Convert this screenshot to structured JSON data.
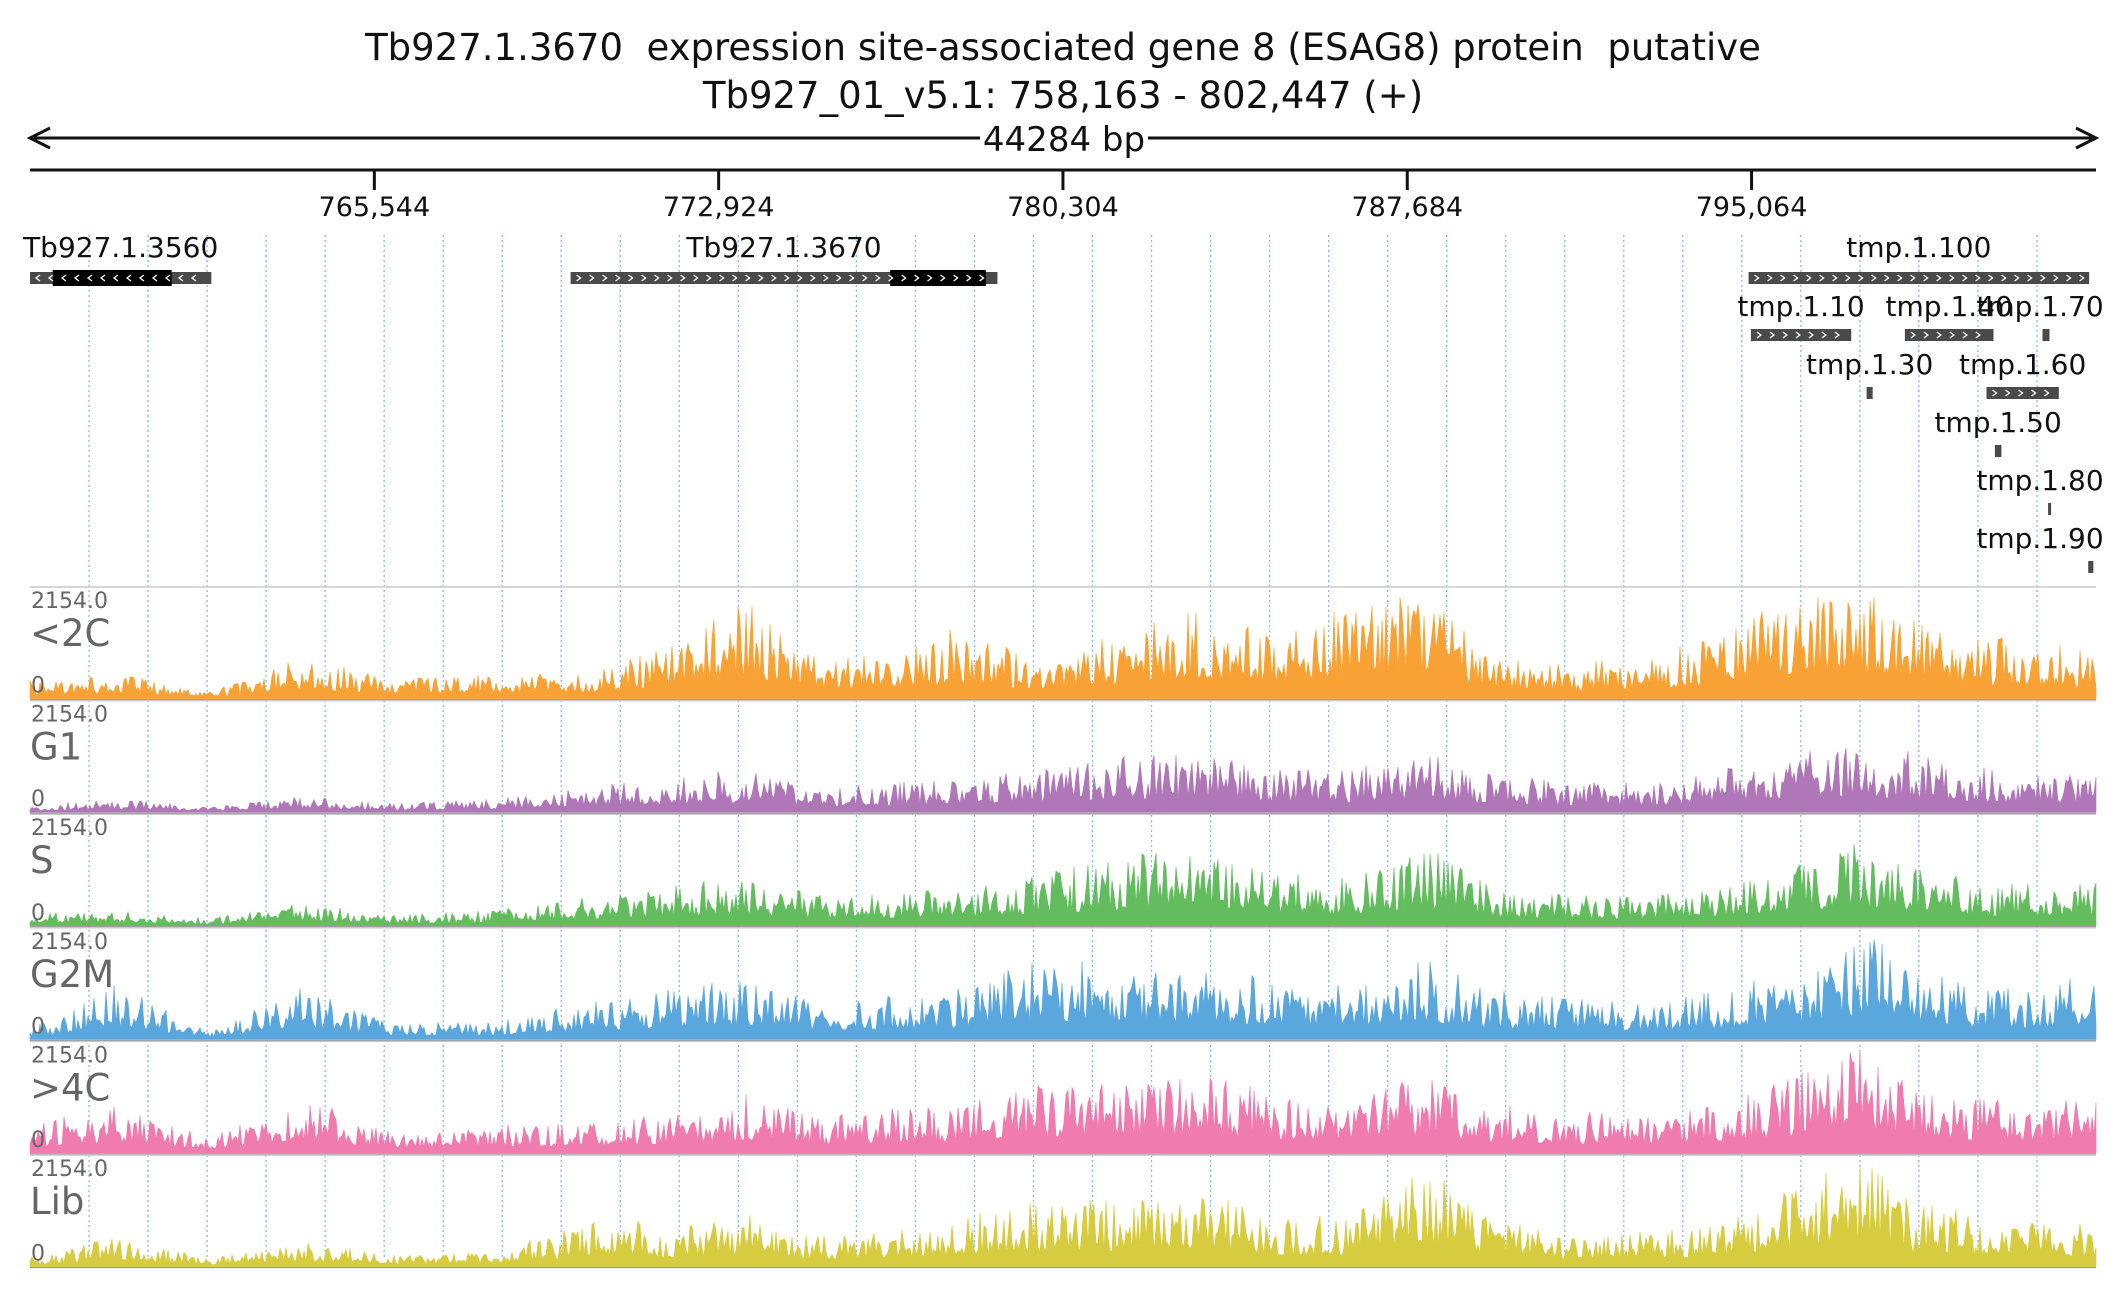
{
  "header": {
    "title": "Tb927.1.3670  expression site-associated gene 8 (ESAG8) protein  putative",
    "locus": "Tb927_01_v5.1: 758,163 - 802,447 (+)",
    "span_label": "44284 bp"
  },
  "region": {
    "chrom": "Tb927_01_v5.1",
    "start": 758163,
    "end": 802447,
    "strand": "+"
  },
  "ruler": {
    "ticks": [
      {
        "pos": 765544,
        "label": "765,544"
      },
      {
        "pos": 772924,
        "label": "772,924"
      },
      {
        "pos": 780304,
        "label": "780,304"
      },
      {
        "pos": 787684,
        "label": "787,684"
      },
      {
        "pos": 795064,
        "label": "795,064"
      }
    ]
  },
  "genes": [
    {
      "name": "Tb927.1.3560",
      "start": 758163,
      "end": 762050,
      "strand": "-",
      "cds_start": 758650,
      "cds_end": 761200,
      "row": 0
    },
    {
      "name": "Tb927.1.3670",
      "start": 769750,
      "end": 778900,
      "strand": "+",
      "cds_start": 776600,
      "cds_end": 778650,
      "row": 0
    },
    {
      "name": "tmp.1.100",
      "start": 795000,
      "end": 802300,
      "strand": "+",
      "row": 0
    },
    {
      "name": "tmp.1.10",
      "start": 795050,
      "end": 797200,
      "strand": "+",
      "row": 1
    },
    {
      "name": "tmp.1.40",
      "start": 798350,
      "end": 800250,
      "strand": "+",
      "row": 1
    },
    {
      "name": "tmp.1.70",
      "start": 801300,
      "end": 801450,
      "strand": "+",
      "row": 1
    },
    {
      "name": "tmp.1.30",
      "start": 797530,
      "end": 797660,
      "strand": "+",
      "row": 2
    },
    {
      "name": "tmp.1.60",
      "start": 800100,
      "end": 801650,
      "strand": "+",
      "row": 2
    },
    {
      "name": "tmp.1.50",
      "start": 800280,
      "end": 800420,
      "strand": "+",
      "row": 3
    },
    {
      "name": "tmp.1.80",
      "start": 801420,
      "end": 801480,
      "strand": "+",
      "row": 4
    },
    {
      "name": "tmp.1.90",
      "start": 802280,
      "end": 802390,
      "strand": "+",
      "row": 5
    }
  ],
  "tracks": [
    {
      "name": "<2C",
      "max_label": "2154.0",
      "min_label": "0",
      "color": "#F8A236"
    },
    {
      "name": "G1",
      "max_label": "2154.0",
      "min_label": "0",
      "color": "#B077B8"
    },
    {
      "name": "S",
      "max_label": "2154.0",
      "min_label": "0",
      "color": "#63BD5E"
    },
    {
      "name": "G2M",
      "max_label": "2154.0",
      "min_label": "0",
      "color": "#5AA7DE"
    },
    {
      "name": ">4C",
      "max_label": "2154.0",
      "min_label": "0",
      "color": "#F07BAE"
    },
    {
      "name": "Lib",
      "max_label": "2154.0",
      "min_label": "0",
      "color": "#D7CC3F"
    }
  ],
  "chart_data": {
    "type": "area",
    "xlabel": "",
    "ylabel": "",
    "x_range": [
      758163,
      802447
    ],
    "ylim": [
      0,
      2154
    ],
    "x": [
      758500,
      760000,
      762000,
      764000,
      766000,
      768000,
      770500,
      772000,
      773500,
      775000,
      776500,
      778000,
      780000,
      782000,
      783500,
      785000,
      786500,
      788000,
      789500,
      791000,
      793000,
      794500,
      796000,
      797500,
      798500,
      800000,
      801500,
      802300
    ],
    "series": [
      {
        "name": "<2C",
        "values": [
          380,
          500,
          150,
          820,
          420,
          480,
          600,
          1150,
          1980,
          900,
          850,
          1450,
          680,
          1620,
          1780,
          1350,
          2154,
          2154,
          850,
          700,
          900,
          1350,
          2154,
          2154,
          1600,
          1250,
          1200,
          900
        ]
      },
      {
        "name": "G1",
        "values": [
          150,
          280,
          120,
          320,
          180,
          260,
          560,
          720,
          880,
          520,
          620,
          640,
          950,
          1200,
          1150,
          920,
          880,
          1200,
          800,
          620,
          580,
          920,
          1200,
          1350,
          1250,
          900,
          850,
          780
        ]
      },
      {
        "name": "S",
        "values": [
          260,
          300,
          150,
          480,
          220,
          320,
          620,
          840,
          1000,
          620,
          680,
          800,
          1100,
          1450,
          1500,
          1050,
          980,
          1650,
          800,
          650,
          600,
          900,
          1250,
          1750,
          1150,
          900,
          820,
          860
        ]
      },
      {
        "name": "G2M",
        "values": [
          320,
          1150,
          160,
          1050,
          300,
          380,
          820,
          1050,
          1220,
          800,
          860,
          1050,
          1650,
          1500,
          1600,
          1150,
          1100,
          1650,
          1000,
          850,
          800,
          1000,
          1450,
          2154,
          1500,
          1050,
          980,
          1550
        ]
      },
      {
        "name": ">4C",
        "values": [
          650,
          1000,
          320,
          1150,
          400,
          560,
          620,
          850,
          1200,
          780,
          880,
          1050,
          1400,
          1450,
          1550,
          1200,
          1100,
          1550,
          1000,
          850,
          800,
          1000,
          1600,
          2154,
          1400,
          1100,
          1000,
          1400
        ]
      },
      {
        "name": "Lib",
        "values": [
          200,
          650,
          150,
          550,
          220,
          300,
          1020,
          820,
          1050,
          680,
          720,
          1000,
          1350,
          1350,
          1450,
          1050,
          1000,
          2154,
          900,
          750,
          700,
          900,
          1700,
          2154,
          1350,
          1050,
          950,
          900
        ]
      }
    ]
  }
}
